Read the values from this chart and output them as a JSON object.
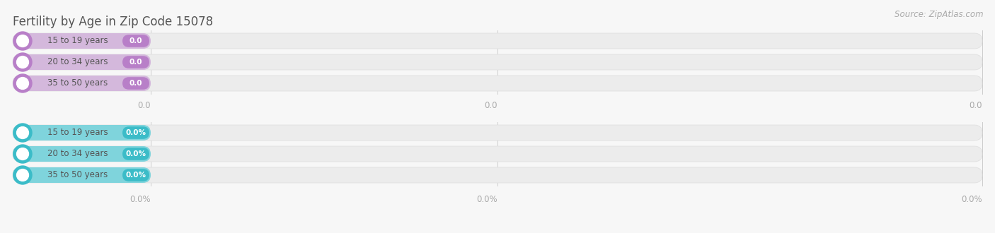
{
  "title": "Fertility by Age in Zip Code 15078",
  "source_text": "Source: ZipAtlas.com",
  "background_color": "#f7f7f7",
  "sections": [
    {
      "type": "count",
      "bar_color": "#d4b8dc",
      "circle_color": "#b87fc8",
      "rows": [
        {
          "label": "15 to 19 years",
          "value": 0.0,
          "display": "0.0"
        },
        {
          "label": "20 to 34 years",
          "value": 0.0,
          "display": "0.0"
        },
        {
          "label": "35 to 50 years",
          "value": 0.0,
          "display": "0.0"
        }
      ],
      "tick_labels": [
        "0.0",
        "0.0",
        "0.0"
      ]
    },
    {
      "type": "percent",
      "bar_color": "#7fd4dc",
      "circle_color": "#3bbcc8",
      "rows": [
        {
          "label": "15 to 19 years",
          "value": 0.0,
          "display": "0.0%"
        },
        {
          "label": "20 to 34 years",
          "value": 0.0,
          "display": "0.0%"
        },
        {
          "label": "35 to 50 years",
          "value": 0.0,
          "display": "0.0%"
        }
      ],
      "tick_labels": [
        "0.0%",
        "0.0%",
        "0.0%"
      ]
    }
  ],
  "figsize": [
    14.06,
    3.3
  ],
  "dpi": 100
}
